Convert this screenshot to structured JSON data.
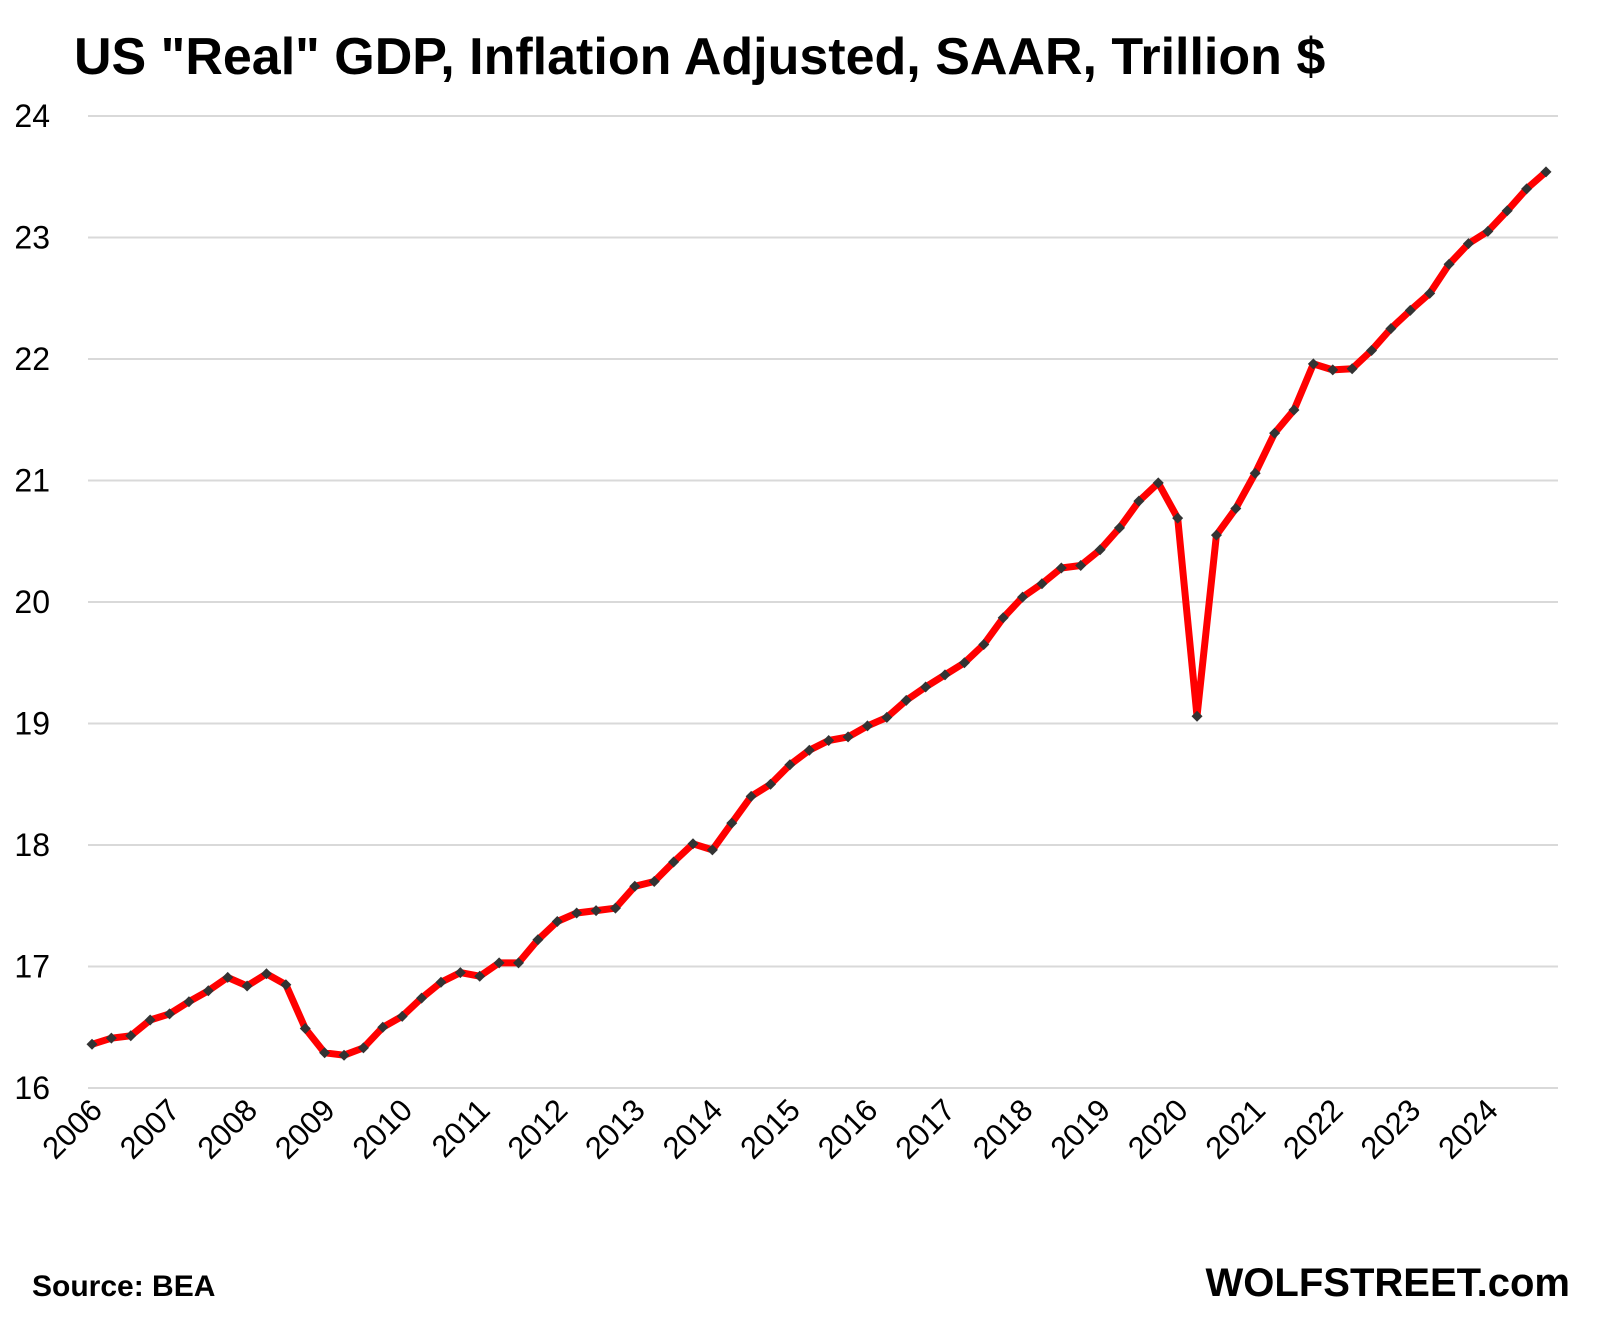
{
  "chart_data": {
    "type": "line",
    "title": "US \"Real\" GDP, Inflation Adjusted, SAAR, Trillion $",
    "source": "Source: BEA",
    "brand": "WOLFSTREET.com",
    "ylim": [
      16,
      24
    ],
    "yticks": [
      16,
      17,
      18,
      19,
      20,
      21,
      22,
      23,
      24
    ],
    "xticks": [
      "2006",
      "2007",
      "2008",
      "2009",
      "2010",
      "2011",
      "2012",
      "2013",
      "2014",
      "2015",
      "2016",
      "2017",
      "2018",
      "2019",
      "2020",
      "2021",
      "2022",
      "2023",
      "2024"
    ],
    "grid": true,
    "legend": "none",
    "series": [
      {
        "color": "#ff0000",
        "marker_color": "#333333",
        "x": [
          "2006 Q1",
          "2006 Q2",
          "2006 Q3",
          "2006 Q4",
          "2007 Q1",
          "2007 Q2",
          "2007 Q3",
          "2007 Q4",
          "2008 Q1",
          "2008 Q2",
          "2008 Q3",
          "2008 Q4",
          "2009 Q1",
          "2009 Q2",
          "2009 Q3",
          "2009 Q4",
          "2010 Q1",
          "2010 Q2",
          "2010 Q3",
          "2010 Q4",
          "2011 Q1",
          "2011 Q2",
          "2011 Q3",
          "2011 Q4",
          "2012 Q1",
          "2012 Q2",
          "2012 Q3",
          "2012 Q4",
          "2013 Q1",
          "2013 Q2",
          "2013 Q3",
          "2013 Q4",
          "2014 Q1",
          "2014 Q2",
          "2014 Q3",
          "2014 Q4",
          "2015 Q1",
          "2015 Q2",
          "2015 Q3",
          "2015 Q4",
          "2016 Q1",
          "2016 Q2",
          "2016 Q3",
          "2016 Q4",
          "2017 Q1",
          "2017 Q2",
          "2017 Q3",
          "2017 Q4",
          "2018 Q1",
          "2018 Q2",
          "2018 Q3",
          "2018 Q4",
          "2019 Q1",
          "2019 Q2",
          "2019 Q3",
          "2019 Q4",
          "2020 Q1",
          "2020 Q2",
          "2020 Q3",
          "2020 Q4",
          "2021 Q1",
          "2021 Q2",
          "2021 Q3",
          "2021 Q4",
          "2022 Q1",
          "2022 Q2",
          "2022 Q3",
          "2022 Q4",
          "2023 Q1",
          "2023 Q2",
          "2023 Q3",
          "2023 Q4",
          "2024 Q1",
          "2024 Q2",
          "2024 Q3",
          "2024 Q4"
        ],
        "values": [
          16.36,
          16.41,
          16.43,
          16.56,
          16.61,
          16.71,
          16.8,
          16.91,
          16.84,
          16.94,
          16.85,
          16.49,
          16.29,
          16.27,
          16.33,
          16.5,
          16.59,
          16.74,
          16.87,
          16.95,
          16.92,
          17.03,
          17.03,
          17.22,
          17.37,
          17.44,
          17.46,
          17.48,
          17.66,
          17.7,
          17.86,
          18.01,
          17.96,
          18.18,
          18.4,
          18.5,
          18.66,
          18.78,
          18.86,
          18.89,
          18.98,
          19.05,
          19.19,
          19.3,
          19.4,
          19.5,
          19.65,
          19.87,
          20.04,
          20.15,
          20.28,
          20.3,
          20.43,
          20.61,
          20.83,
          20.98,
          20.69,
          19.06,
          20.55,
          20.77,
          21.06,
          21.39,
          21.58,
          21.96,
          21.91,
          21.92,
          22.07,
          22.25,
          22.4,
          22.54,
          22.78,
          22.95,
          23.05,
          23.22,
          23.4,
          23.54
        ]
      }
    ]
  }
}
